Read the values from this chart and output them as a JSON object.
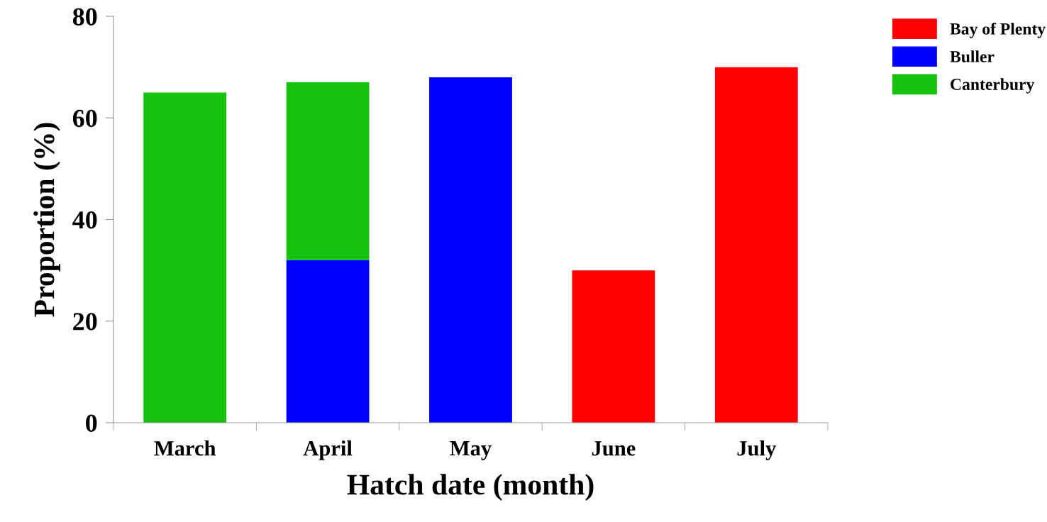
{
  "chart_data": {
    "type": "bar",
    "stacked": true,
    "xlabel": "Hatch date (month)",
    "ylabel": "Proportion (%)",
    "categories": [
      "March",
      "April",
      "May",
      "June",
      "July"
    ],
    "series": [
      {
        "name": "Bay of Plenty",
        "color": "#ff0000",
        "values": [
          null,
          null,
          null,
          30,
          70
        ]
      },
      {
        "name": "Buller",
        "color": "#0000ff",
        "values": [
          null,
          32,
          68,
          null,
          null
        ]
      },
      {
        "name": "Canterbury",
        "color": "#15c20e",
        "values": [
          65,
          35,
          null,
          null,
          null
        ]
      }
    ],
    "ylim": [
      0,
      80
    ],
    "yticks": [
      0,
      20,
      40,
      60,
      80
    ],
    "grid": false,
    "legend": "top right"
  }
}
